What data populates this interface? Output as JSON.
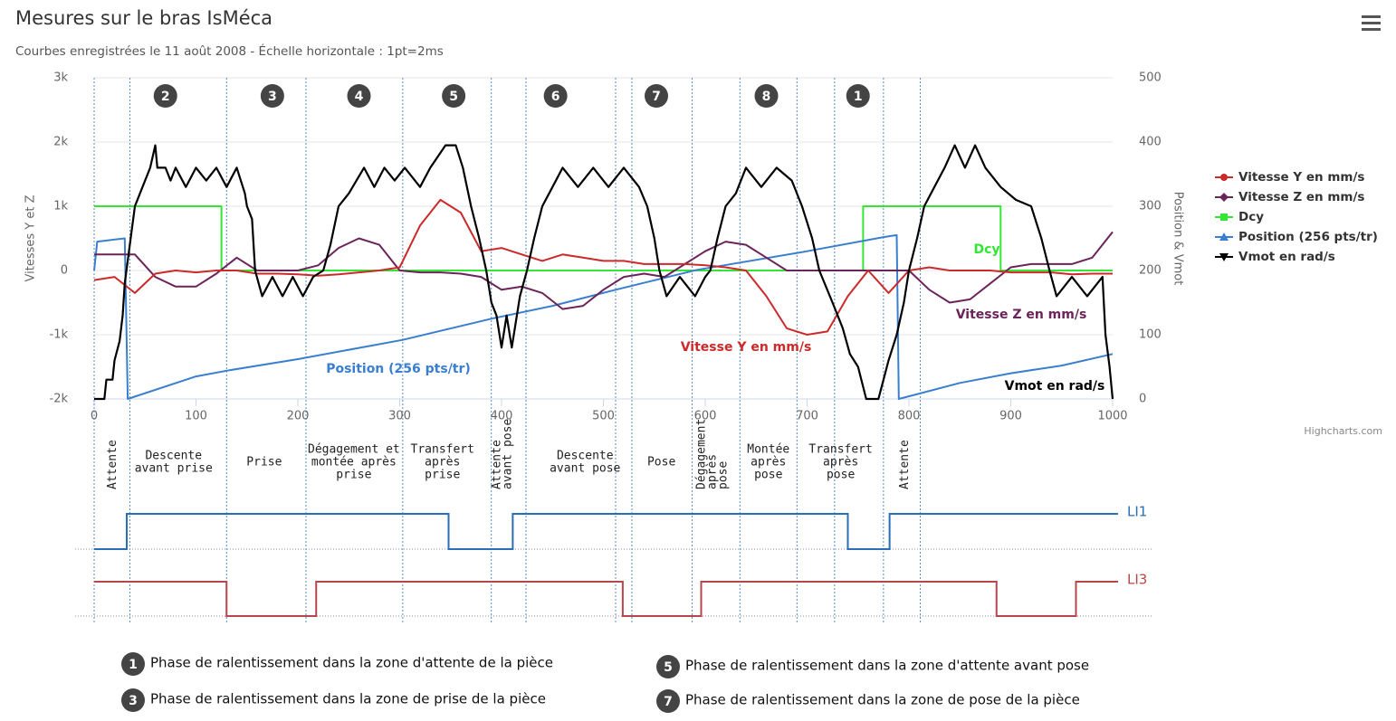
{
  "chart_data": {
    "type": "line",
    "title": "Mesures sur le bras IsMéca",
    "subtitle": "Courbes enregistrées le 11 août 2008 - Échelle horizontale : 1pt=2ms",
    "y_axis_title": "Vitesses Y et Z",
    "y2_axis_title": "Position & Vmot",
    "xlim": [
      0,
      1000
    ],
    "xticks": [
      0,
      100,
      200,
      300,
      400,
      500,
      600,
      700,
      800,
      900,
      1000
    ],
    "ylim": [
      -2000,
      3000
    ],
    "yticks": [
      {
        "value": -2000,
        "label": "-2k"
      },
      {
        "value": -1000,
        "label": "-1k"
      },
      0,
      {
        "value": 1000,
        "label": "1k"
      },
      {
        "value": 2000,
        "label": "2k"
      },
      {
        "value": 3000,
        "label": "3k"
      }
    ],
    "y2lim": [
      0,
      500
    ],
    "y2ticks": [
      0,
      100,
      200,
      300,
      400,
      500
    ],
    "grid": true,
    "legend": "right",
    "series": [
      {
        "name": "Vitesse Y en mm/s",
        "color": "#cc2a2a",
        "marker": "circle",
        "x": [
          0,
          20,
          40,
          60,
          80,
          100,
          120,
          140,
          160,
          180,
          200,
          220,
          240,
          260,
          280,
          300,
          320,
          340,
          360,
          380,
          400,
          420,
          440,
          460,
          480,
          500,
          520,
          540,
          560,
          580,
          600,
          620,
          640,
          660,
          680,
          700,
          720,
          740,
          760,
          780,
          800,
          820,
          840,
          860,
          880,
          900,
          920,
          940,
          960,
          980,
          1000
        ],
        "values": [
          -150,
          -100,
          -350,
          -50,
          0,
          -30,
          0,
          0,
          -50,
          -50,
          -60,
          -80,
          -60,
          -30,
          0,
          50,
          700,
          1100,
          900,
          300,
          350,
          250,
          150,
          250,
          200,
          150,
          150,
          100,
          100,
          100,
          80,
          50,
          0,
          -400,
          -900,
          -1000,
          -950,
          -400,
          0,
          -350,
          0,
          50,
          0,
          0,
          0,
          -30,
          -30,
          -30,
          -60,
          -50,
          -50
        ]
      },
      {
        "name": "Vitesse Z en mm/s",
        "color": "#6b2459",
        "marker": "diamond",
        "x": [
          0,
          20,
          40,
          60,
          80,
          100,
          120,
          140,
          160,
          180,
          200,
          220,
          240,
          260,
          280,
          300,
          320,
          340,
          360,
          380,
          400,
          420,
          440,
          460,
          480,
          500,
          520,
          540,
          560,
          580,
          600,
          620,
          640,
          660,
          680,
          700,
          720,
          740,
          760,
          780,
          800,
          820,
          840,
          860,
          880,
          900,
          920,
          940,
          960,
          980,
          1000
        ],
        "values": [
          250,
          250,
          250,
          -100,
          -250,
          -250,
          -50,
          200,
          0,
          0,
          0,
          80,
          350,
          500,
          400,
          0,
          -30,
          -30,
          -50,
          -100,
          -300,
          -250,
          -350,
          -600,
          -550,
          -300,
          -100,
          -50,
          -100,
          100,
          300,
          450,
          400,
          200,
          0,
          0,
          0,
          0,
          0,
          0,
          0,
          -300,
          -500,
          -450,
          -200,
          50,
          100,
          100,
          100,
          200,
          600
        ]
      },
      {
        "name": "Dcy",
        "color": "#33e633",
        "marker": "square",
        "x": [
          0,
          125,
          125,
          755,
          755,
          890,
          890,
          1000
        ],
        "values": [
          1000,
          1000,
          0,
          0,
          1000,
          1000,
          0,
          0
        ]
      },
      {
        "name": "Position (256 pts/tr)",
        "color": "#3a7fcf",
        "marker": "triangle",
        "axis": "y2",
        "x": [
          0,
          3,
          30,
          33,
          100,
          130,
          200,
          303,
          390,
          450,
          512,
          592,
          700,
          775,
          788,
          790,
          850,
          900,
          950,
          1000
        ],
        "values": [
          200,
          245,
          250,
          0,
          35,
          44,
          62,
          92,
          125,
          145,
          170,
          201,
          230,
          252,
          255,
          0,
          25,
          40,
          52,
          70
        ]
      },
      {
        "name": "Vmot en rad/s",
        "color": "#000000",
        "marker": "triangle-down",
        "axis": "y2",
        "x": [
          0,
          10,
          12,
          18,
          20,
          25,
          28,
          30,
          35,
          40,
          45,
          55,
          60,
          62,
          70,
          75,
          80,
          90,
          100,
          110,
          120,
          130,
          140,
          148,
          150,
          155,
          158,
          165,
          175,
          185,
          195,
          205,
          215,
          225,
          232,
          240,
          250,
          265,
          275,
          285,
          295,
          305,
          320,
          330,
          345,
          355,
          362,
          370,
          378,
          385,
          390,
          395,
          400,
          405,
          410,
          418,
          425,
          432,
          440,
          450,
          460,
          475,
          490,
          505,
          520,
          535,
          543,
          550,
          555,
          562,
          575,
          590,
          600,
          605,
          612,
          620,
          630,
          640,
          655,
          670,
          685,
          695,
          705,
          712,
          725,
          735,
          742,
          750,
          758,
          770,
          775,
          780,
          788,
          795,
          800,
          808,
          815,
          825,
          835,
          845,
          855,
          865,
          875,
          890,
          905,
          920,
          930,
          938,
          945,
          960,
          975,
          990,
          993,
          997,
          1000
        ],
        "values": [
          0,
          0,
          30,
          30,
          60,
          90,
          130,
          180,
          240,
          300,
          320,
          360,
          395,
          360,
          360,
          340,
          360,
          330,
          360,
          340,
          360,
          330,
          360,
          320,
          300,
          280,
          200,
          160,
          190,
          160,
          190,
          160,
          190,
          200,
          240,
          300,
          320,
          360,
          330,
          360,
          340,
          360,
          330,
          360,
          395,
          395,
          360,
          300,
          250,
          200,
          150,
          130,
          80,
          130,
          80,
          160,
          200,
          250,
          300,
          330,
          360,
          330,
          360,
          330,
          360,
          330,
          300,
          250,
          200,
          160,
          190,
          160,
          190,
          200,
          250,
          300,
          320,
          360,
          330,
          360,
          340,
          300,
          250,
          200,
          150,
          110,
          70,
          50,
          0,
          0,
          30,
          60,
          100,
          150,
          200,
          250,
          300,
          330,
          360,
          395,
          360,
          395,
          360,
          330,
          310,
          300,
          250,
          200,
          160,
          190,
          160,
          190,
          100,
          50,
          0
        ]
      }
    ],
    "series_labels": [
      "Dcy",
      "Vitesse Z en mm/s",
      "Vitesse Y en mm/s",
      "Position (256 pts/tr)",
      "Vmot en rad/s"
    ],
    "boundaries": [
      0,
      35,
      130,
      208,
      303,
      390,
      424,
      512,
      528,
      587,
      634,
      690,
      727,
      775,
      811
    ],
    "phase_numbers": [
      {
        "label": "2",
        "x": 70
      },
      {
        "label": "3",
        "x": 175
      },
      {
        "label": "4",
        "x": 260
      },
      {
        "label": "5",
        "x": 353
      },
      {
        "label": "6",
        "x": 453
      },
      {
        "label": "7",
        "x": 552
      },
      {
        "label": "8",
        "x": 660
      },
      {
        "label": "1",
        "x": 750
      }
    ],
    "phases": [
      {
        "lines": [
          "Attente"
        ],
        "x": 18,
        "rotated": true
      },
      {
        "lines": [
          "Descente",
          "avant prise"
        ],
        "x": 78
      },
      {
        "lines": [
          "Prise"
        ],
        "x": 167
      },
      {
        "lines": [
          "Dégagement et",
          "montée après",
          "prise"
        ],
        "x": 255
      },
      {
        "lines": [
          "Transfert",
          "après",
          "prise"
        ],
        "x": 342
      },
      {
        "lines": [
          "Attente",
          "avant pose"
        ],
        "x": 401,
        "rotated": true
      },
      {
        "lines": [
          "Descente",
          "avant pose"
        ],
        "x": 482
      },
      {
        "lines": [
          "Pose"
        ],
        "x": 557
      },
      {
        "lines": [
          "Dégagement",
          "après",
          "pose"
        ],
        "x": 607,
        "rotated": true
      },
      {
        "lines": [
          "Montée",
          "après",
          "pose"
        ],
        "x": 662
      },
      {
        "lines": [
          "Transfert",
          "après",
          "pose"
        ],
        "x": 733
      },
      {
        "lines": [
          "Attente"
        ],
        "x": 796,
        "rotated": true
      }
    ],
    "signals": [
      {
        "name": "LI1",
        "color": "#2a6fb5",
        "x": [
          0,
          32,
          348,
          411,
          740,
          781
        ],
        "values": [
          0,
          1,
          0,
          1,
          0,
          1
        ]
      },
      {
        "name": "LI3",
        "color": "#b5474c",
        "x": [
          0,
          130,
          218,
          519,
          596,
          886,
          964
        ],
        "values": [
          1,
          0,
          1,
          0,
          1,
          0,
          1
        ]
      }
    ],
    "notes": [
      {
        "number": "1",
        "text": "Phase de ralentissement dans la zone d'attente de la pièce"
      },
      {
        "number": "3",
        "text": "Phase de ralentissement dans la zone de prise de la pièce"
      },
      {
        "number": "5",
        "text": "Phase de ralentissement dans la zone d'attente avant pose"
      },
      {
        "number": "7",
        "text": "Phase de ralentissement dans la zone de pose de la pièce"
      }
    ],
    "credits": "Highcharts.com"
  }
}
